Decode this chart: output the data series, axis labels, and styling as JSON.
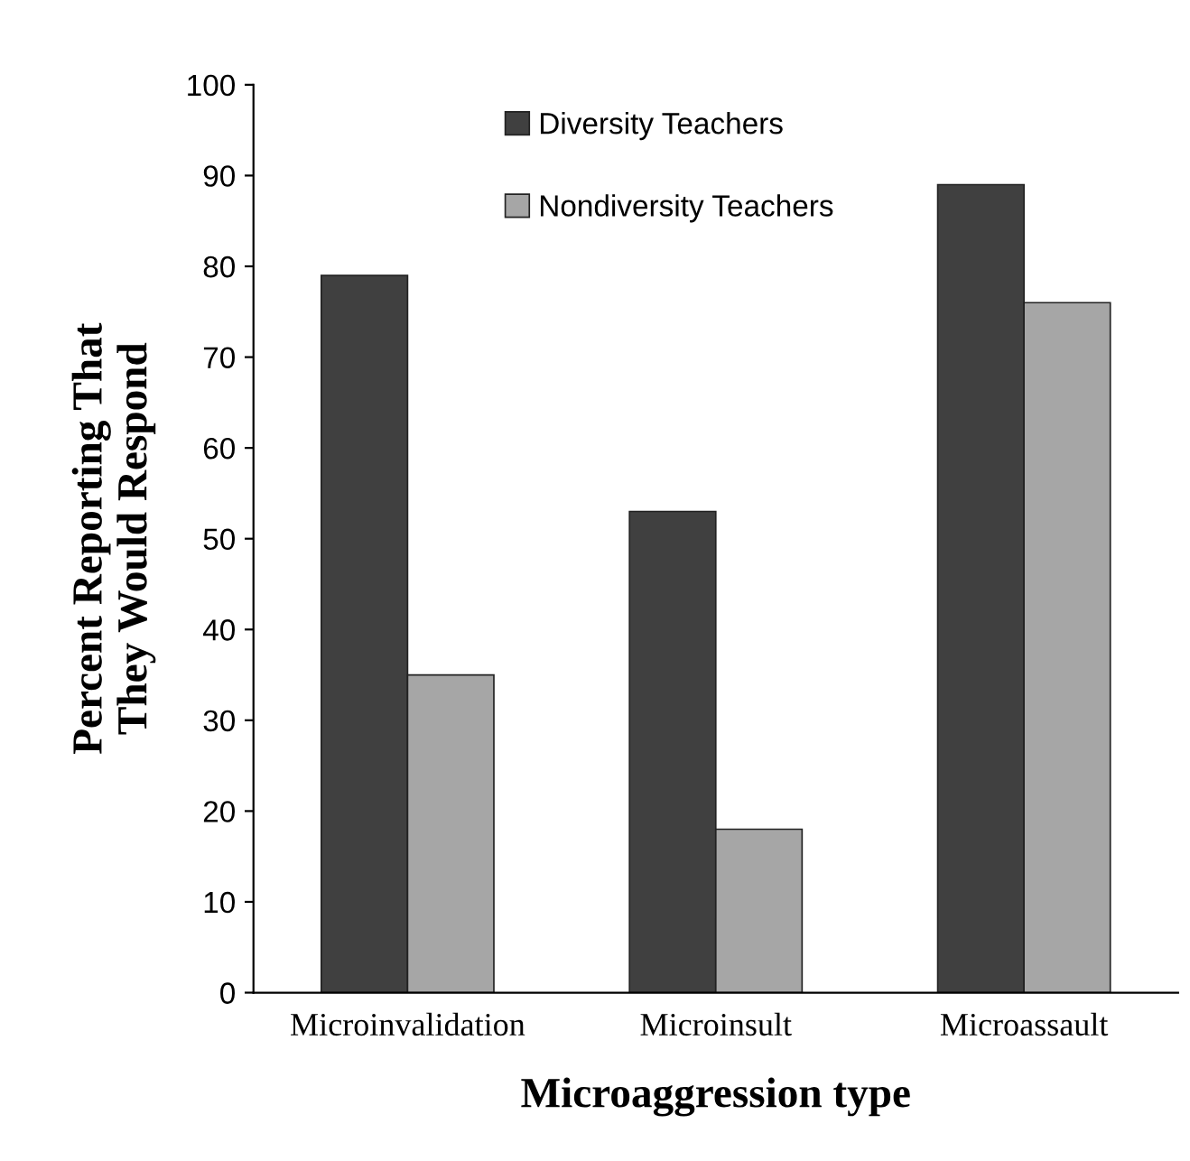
{
  "chart_data": {
    "type": "bar",
    "xlabel": "Microaggression type",
    "ylabel": "Percent Reporting That\nThey Would Respond",
    "categories": [
      "Microinvalidation",
      "Microinsult",
      "Microassault"
    ],
    "series": [
      {
        "name": "Diversity Teachers",
        "color": "#404040",
        "values": [
          79,
          53,
          89
        ]
      },
      {
        "name": "Nondiversity Teachers",
        "color": "#a6a6a6",
        "values": [
          35,
          18,
          76
        ]
      }
    ],
    "ylim": [
      0,
      100
    ],
    "yticks": [
      0,
      10,
      20,
      30,
      40,
      50,
      60,
      70,
      80,
      90,
      100
    ],
    "grid": false,
    "legend": "top"
  }
}
